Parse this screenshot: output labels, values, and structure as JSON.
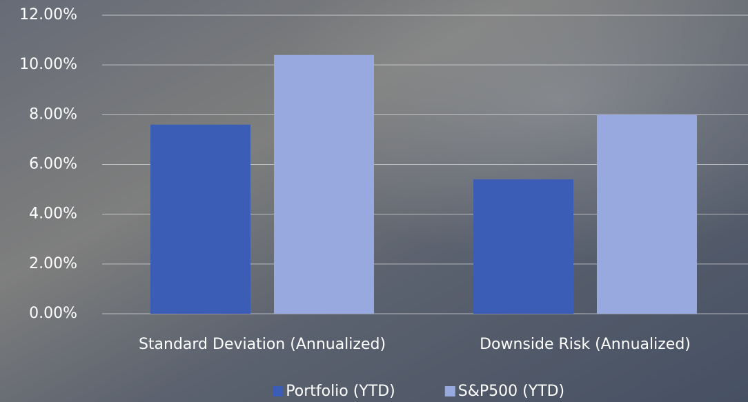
{
  "chart_data": {
    "type": "bar",
    "categories": [
      "Standard Deviation (Annualized)",
      "Downside Risk (Annualized)"
    ],
    "series": [
      {
        "name": "Portfolio (YTD)",
        "color": "#3b5db5",
        "values": [
          7.6,
          5.4
        ]
      },
      {
        "name": "S&P500 (YTD)",
        "color": "#97a9de",
        "values": [
          10.4,
          8.0
        ]
      }
    ],
    "ylim": [
      0,
      12
    ],
    "yticks": [
      {
        "value": 0,
        "label": "0.00%"
      },
      {
        "value": 2,
        "label": "2.00%"
      },
      {
        "value": 4,
        "label": "4.00%"
      },
      {
        "value": 6,
        "label": "6.00%"
      },
      {
        "value": 8,
        "label": "8.00%"
      },
      {
        "value": 10,
        "label": "10.00%"
      },
      {
        "value": 12,
        "label": "12.00%"
      }
    ],
    "grid": true,
    "legend": "bottom"
  }
}
